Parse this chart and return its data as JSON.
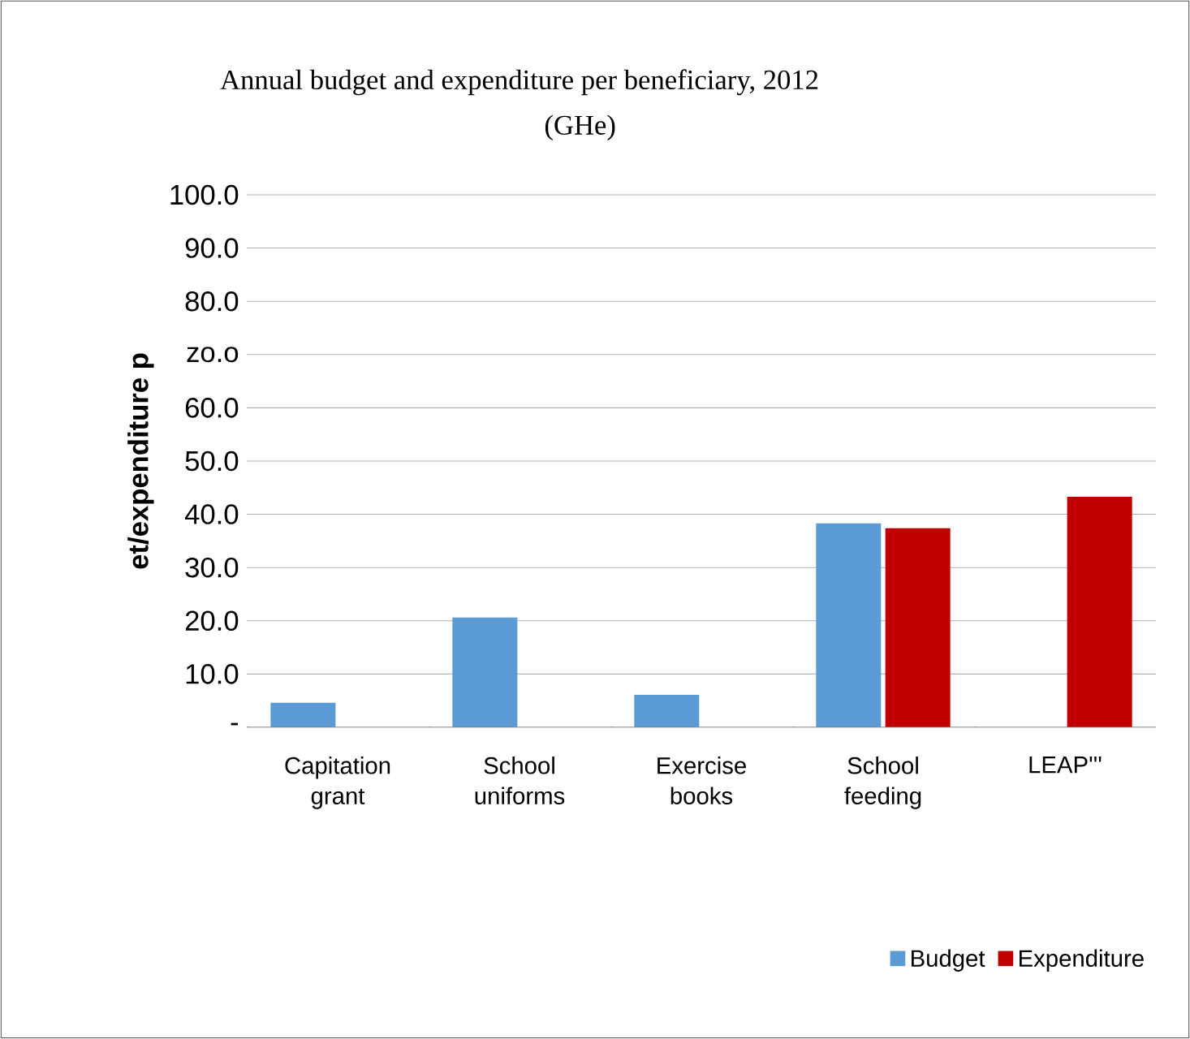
{
  "chart_data": {
    "type": "bar",
    "title": "Annual budget and expenditure per beneficiary, 2012",
    "subtitle": "(GHe)",
    "ylabel": "et/expenditure p",
    "categories": [
      "Capitation grant",
      "School uniforms",
      "Exercise books",
      "School feeding",
      "LEAP'''"
    ],
    "series": [
      {
        "name": "Budget",
        "color": "#5b9bd5",
        "values": [
          4.6,
          20.6,
          6.1,
          38.3,
          null
        ]
      },
      {
        "name": "Expenditure",
        "color": "#c00000",
        "values": [
          null,
          null,
          null,
          37.4,
          43.3
        ]
      }
    ],
    "ylim": [
      0,
      100
    ],
    "yticks": [
      {
        "value": 0,
        "label": "-"
      },
      {
        "value": 10,
        "label": "10.0"
      },
      {
        "value": 20,
        "label": "20.0"
      },
      {
        "value": 30,
        "label": "30.0"
      },
      {
        "value": 40,
        "label": "40.0"
      },
      {
        "value": 50,
        "label": "50.0"
      },
      {
        "value": 60,
        "label": "60.0"
      },
      {
        "value": 70,
        "label": "zo.o"
      },
      {
        "value": 80,
        "label": "80.0"
      },
      {
        "value": 90,
        "label": "90.0"
      },
      {
        "value": 100,
        "label": "100.0"
      }
    ],
    "grid": "y",
    "legend": "bottom right"
  }
}
